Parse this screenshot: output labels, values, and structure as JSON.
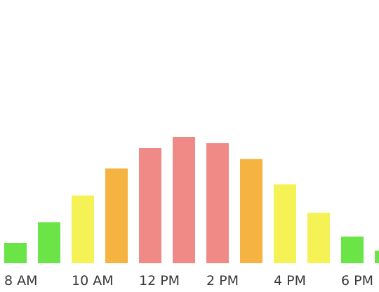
{
  "chart_data": {
    "type": "bar",
    "title": "",
    "xlabel": "",
    "ylabel": "",
    "categories": [
      "8 AM",
      "9 AM",
      "10 AM",
      "11 AM",
      "12 PM",
      "1 PM",
      "2 PM",
      "3 PM",
      "4 PM",
      "5 PM",
      "6 PM",
      "7 PM"
    ],
    "x_tick_labels": [
      "8 AM",
      "10 AM",
      "12 PM",
      "2 PM",
      "4 PM",
      "6 PM"
    ],
    "values": [
      1.3,
      2.6,
      4.3,
      6.0,
      7.3,
      8.0,
      7.6,
      6.6,
      5.0,
      3.2,
      1.7,
      0.8
    ],
    "ylim": [
      0,
      10
    ],
    "grid": false,
    "legend": "none",
    "bar_colors": [
      "#6be447",
      "#6be447",
      "#f5f256",
      "#f5b342",
      "#f08a87",
      "#f08a87",
      "#f08a87",
      "#f5b342",
      "#f5f256",
      "#f5f256",
      "#6be447",
      "#6be447"
    ]
  }
}
